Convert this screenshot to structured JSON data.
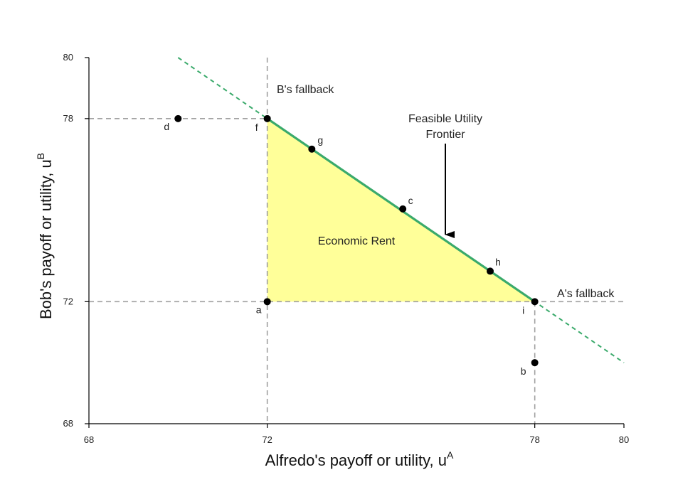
{
  "chart_data": {
    "type": "scatter",
    "title": "",
    "xlabel": "Alfredo's payoff or utility, u",
    "xlabel_sup": "A",
    "ylabel": "Bob's payoff or utility, u",
    "ylabel_sup": "B",
    "xlim": [
      68,
      80
    ],
    "ylim": [
      68,
      80
    ],
    "xticks": [
      68,
      72,
      78,
      80
    ],
    "yticks": [
      68,
      72,
      78,
      80
    ],
    "grid": false,
    "points": [
      {
        "label": "a",
        "x": 72,
        "y": 72
      },
      {
        "label": "b",
        "x": 78,
        "y": 70
      },
      {
        "label": "c",
        "x": 75.04,
        "y": 75.04
      },
      {
        "label": "d",
        "x": 70,
        "y": 78
      },
      {
        "label": "f",
        "x": 72,
        "y": 78
      },
      {
        "label": "g",
        "x": 73,
        "y": 77
      },
      {
        "label": "h",
        "x": 77,
        "y": 73
      },
      {
        "label": "i",
        "x": 78,
        "y": 72
      }
    ],
    "frontier": {
      "slope": -1,
      "intercept": 150,
      "segment_x": [
        72,
        78
      ],
      "dashed_x": [
        70,
        80
      ]
    },
    "fallbacks": {
      "A": 72,
      "B": 72
    },
    "region": {
      "label": "Economic Rent",
      "vertices": [
        [
          72,
          72
        ],
        [
          72,
          78
        ],
        [
          78,
          72
        ]
      ],
      "color": "#ffff99"
    },
    "annotations": {
      "b_fallback": "B's fallback",
      "a_fallback": "A's fallback",
      "frontier_line1": "Feasible Utility",
      "frontier_line2": "Frontier"
    },
    "colors": {
      "frontier": "#3aaa6b",
      "guide": "#a0a0a0",
      "points": "#000000"
    }
  }
}
